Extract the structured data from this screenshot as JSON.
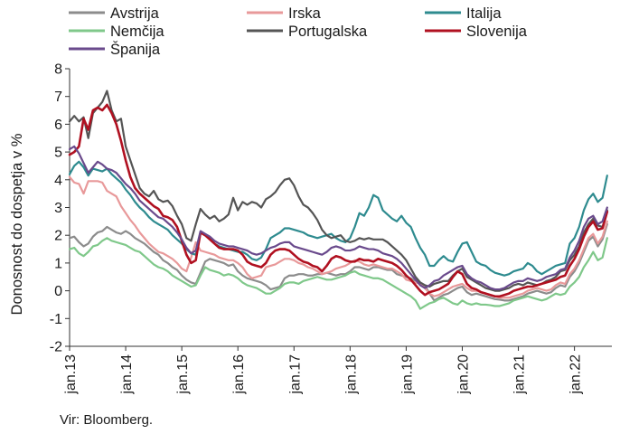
{
  "chart_data": {
    "type": "line",
    "title": "",
    "xlabel": "",
    "ylabel": "Donosnost do dospetja v %",
    "ylim": [
      -2,
      8
    ],
    "yticks": [
      -2,
      -1,
      0,
      1,
      2,
      3,
      4,
      5,
      6,
      7,
      8
    ],
    "grid": false,
    "legend_placement": "top",
    "x_tick_labels": [
      "jan.13",
      "jan.14",
      "jan.15",
      "jan.16",
      "jan.17",
      "jan.18",
      "jan.19",
      "jan.20",
      "jan.21",
      "jan.22"
    ],
    "x_range_months": [
      0,
      116
    ],
    "source": "Vir: Bloomberg.",
    "series": [
      {
        "name": "Avstrija",
        "color": "#8c8c8c",
        "values": [
          1.9,
          1.95,
          1.75,
          1.6,
          1.7,
          1.95,
          2.1,
          2.15,
          2.3,
          2.2,
          2.1,
          2.05,
          2.15,
          2.05,
          1.9,
          1.8,
          1.7,
          1.55,
          1.4,
          1.3,
          1.1,
          1.0,
          0.85,
          0.75,
          0.55,
          0.4,
          0.3,
          0.25,
          0.65,
          1.05,
          1.15,
          1.1,
          1.05,
          1.0,
          0.9,
          0.95,
          0.7,
          0.55,
          0.45,
          0.4,
          0.35,
          0.3,
          0.2,
          0.05,
          0.1,
          0.15,
          0.45,
          0.55,
          0.55,
          0.6,
          0.6,
          0.55,
          0.55,
          0.6,
          0.6,
          0.65,
          0.6,
          0.55,
          0.6,
          0.6,
          0.7,
          0.85,
          0.85,
          0.8,
          0.75,
          0.85,
          0.85,
          0.8,
          0.75,
          0.75,
          0.6,
          0.55,
          0.5,
          0.45,
          0.35,
          0.3,
          0.2,
          -0.1,
          -0.35,
          -0.25,
          -0.15,
          -0.1,
          0.0,
          0.1,
          0.15,
          -0.05,
          -0.15,
          -0.1,
          -0.15,
          -0.2,
          -0.25,
          -0.3,
          -0.32,
          -0.35,
          -0.35,
          -0.3,
          -0.25,
          -0.2,
          -0.1,
          -0.05,
          0.0,
          -0.05,
          -0.1,
          -0.05,
          0.1,
          0.2,
          0.15,
          0.5,
          0.7,
          1.0,
          1.4,
          1.8,
          1.95,
          1.6,
          1.85,
          2.4
        ]
      },
      {
        "name": "Irska",
        "color": "#e8999a",
        "values": [
          4.1,
          3.9,
          3.85,
          3.5,
          3.95,
          3.95,
          3.95,
          3.9,
          3.6,
          3.5,
          3.4,
          3.05,
          2.8,
          2.55,
          2.35,
          2.1,
          1.9,
          1.7,
          1.55,
          1.4,
          1.35,
          1.25,
          1.15,
          1.0,
          0.8,
          0.7,
          1.2,
          1.75,
          1.45,
          1.4,
          1.35,
          1.3,
          1.2,
          1.15,
          1.1,
          1.1,
          1.0,
          0.85,
          0.6,
          0.45,
          0.5,
          0.55,
          0.85,
          0.9,
          0.95,
          1.05,
          1.15,
          1.15,
          1.1,
          1.0,
          0.95,
          0.85,
          0.8,
          0.7,
          0.6,
          0.65,
          0.7,
          0.8,
          0.85,
          0.9,
          1.0,
          1.1,
          1.05,
          0.95,
          0.9,
          0.95,
          0.9,
          0.85,
          0.8,
          0.8,
          0.7,
          0.6,
          0.4,
          0.35,
          0.3,
          0.25,
          0.1,
          -0.1,
          -0.2,
          -0.15,
          -0.05,
          0.05,
          0.15,
          0.2,
          0.25,
          0.1,
          0.0,
          0.0,
          -0.05,
          -0.1,
          -0.15,
          -0.2,
          -0.25,
          -0.25,
          -0.25,
          -0.2,
          -0.15,
          -0.1,
          0.0,
          0.05,
          0.1,
          0.05,
          0.0,
          0.05,
          0.2,
          0.3,
          0.25,
          0.6,
          0.8,
          1.1,
          1.5,
          1.9,
          2.05,
          1.7,
          1.95,
          2.5
        ]
      },
      {
        "name": "Italija",
        "color": "#2e8b8f",
        "values": [
          4.2,
          4.5,
          4.65,
          4.45,
          4.15,
          4.4,
          4.35,
          4.3,
          4.4,
          4.2,
          4.05,
          3.9,
          3.65,
          3.45,
          3.2,
          3.0,
          2.85,
          2.65,
          2.5,
          2.4,
          2.3,
          2.2,
          2.0,
          1.85,
          1.7,
          1.5,
          1.35,
          1.3,
          2.1,
          2.0,
          1.9,
          1.7,
          1.6,
          1.55,
          1.5,
          1.45,
          1.4,
          1.4,
          1.3,
          1.15,
          1.1,
          1.2,
          1.5,
          1.9,
          2.0,
          2.1,
          2.25,
          2.25,
          2.2,
          2.15,
          2.1,
          2.0,
          1.95,
          1.9,
          1.95,
          2.0,
          2.05,
          1.9,
          1.8,
          1.75,
          1.9,
          2.3,
          2.8,
          2.7,
          3.0,
          3.45,
          3.35,
          2.9,
          2.75,
          2.6,
          2.5,
          2.7,
          2.45,
          2.3,
          1.9,
          1.55,
          1.3,
          0.9,
          0.9,
          1.1,
          1.25,
          1.1,
          1.05,
          1.4,
          1.7,
          1.75,
          1.4,
          1.05,
          0.95,
          0.9,
          0.75,
          0.65,
          0.6,
          0.55,
          0.6,
          0.7,
          0.75,
          0.8,
          1.0,
          0.9,
          0.7,
          0.6,
          0.7,
          0.8,
          0.9,
          0.95,
          1.0,
          1.7,
          1.9,
          2.3,
          2.9,
          3.3,
          3.5,
          3.2,
          3.35,
          4.15
        ]
      },
      {
        "name": "Nemčija",
        "color": "#7fc88a",
        "values": [
          1.5,
          1.55,
          1.35,
          1.25,
          1.4,
          1.6,
          1.65,
          1.8,
          1.9,
          1.8,
          1.75,
          1.7,
          1.65,
          1.55,
          1.45,
          1.4,
          1.25,
          1.1,
          0.95,
          0.85,
          0.8,
          0.7,
          0.55,
          0.45,
          0.35,
          0.25,
          0.15,
          0.2,
          0.55,
          0.85,
          0.75,
          0.7,
          0.65,
          0.55,
          0.6,
          0.55,
          0.45,
          0.3,
          0.2,
          0.15,
          0.1,
          0.0,
          -0.1,
          -0.1,
          0.0,
          0.1,
          0.25,
          0.3,
          0.3,
          0.25,
          0.35,
          0.4,
          0.45,
          0.5,
          0.45,
          0.4,
          0.4,
          0.45,
          0.5,
          0.55,
          0.65,
          0.7,
          0.6,
          0.55,
          0.5,
          0.45,
          0.45,
          0.4,
          0.3,
          0.2,
          0.1,
          0.0,
          -0.1,
          -0.2,
          -0.35,
          -0.65,
          -0.55,
          -0.45,
          -0.4,
          -0.3,
          -0.25,
          -0.35,
          -0.45,
          -0.5,
          -0.35,
          -0.45,
          -0.5,
          -0.45,
          -0.5,
          -0.5,
          -0.52,
          -0.55,
          -0.55,
          -0.5,
          -0.45,
          -0.35,
          -0.3,
          -0.25,
          -0.2,
          -0.25,
          -0.3,
          -0.35,
          -0.3,
          -0.2,
          -0.1,
          -0.15,
          -0.1,
          0.15,
          0.3,
          0.5,
          0.85,
          1.1,
          1.4,
          1.1,
          1.2,
          1.9
        ]
      },
      {
        "name": "Portugalska",
        "color": "#555555",
        "values": [
          6.1,
          6.3,
          6.1,
          6.25,
          5.5,
          6.4,
          6.6,
          6.8,
          7.2,
          6.5,
          6.1,
          6.2,
          5.2,
          4.7,
          4.2,
          3.7,
          3.5,
          3.4,
          3.6,
          3.3,
          3.2,
          3.25,
          3.05,
          2.7,
          2.4,
          1.9,
          1.8,
          2.4,
          2.95,
          2.75,
          2.6,
          2.7,
          2.5,
          2.6,
          2.75,
          3.35,
          2.9,
          3.2,
          3.1,
          3.2,
          3.15,
          3.0,
          3.3,
          3.4,
          3.55,
          3.8,
          4.0,
          4.05,
          3.8,
          3.4,
          3.1,
          3.0,
          2.8,
          2.55,
          2.2,
          2.0,
          1.9,
          1.95,
          2.0,
          1.8,
          1.75,
          1.8,
          1.9,
          1.85,
          1.9,
          1.85,
          1.85,
          1.85,
          1.75,
          1.6,
          1.45,
          1.3,
          1.1,
          0.8,
          0.5,
          0.3,
          0.2,
          0.15,
          0.25,
          0.3,
          0.35,
          0.35,
          0.55,
          0.7,
          0.8,
          0.5,
          0.4,
          0.3,
          0.2,
          0.1,
          0.05,
          0.0,
          0.0,
          0.05,
          0.1,
          0.2,
          0.25,
          0.2,
          0.3,
          0.25,
          0.2,
          0.25,
          0.35,
          0.4,
          0.5,
          0.7,
          0.75,
          1.1,
          1.3,
          1.6,
          2.1,
          2.4,
          2.6,
          2.35,
          2.3,
          2.9
        ]
      },
      {
        "name": "Slovenija",
        "color": "#b01020",
        "values": [
          4.9,
          5.0,
          5.2,
          6.2,
          5.8,
          6.5,
          6.6,
          6.5,
          6.7,
          6.4,
          6.0,
          5.4,
          4.7,
          4.1,
          3.7,
          3.5,
          3.35,
          3.2,
          3.05,
          2.95,
          2.7,
          2.65,
          2.55,
          2.3,
          1.8,
          1.3,
          1.0,
          1.1,
          2.1,
          2.0,
          1.85,
          1.7,
          1.55,
          1.5,
          1.5,
          1.5,
          1.45,
          1.3,
          1.05,
          0.95,
          0.9,
          0.85,
          1.0,
          1.3,
          1.45,
          1.5,
          1.5,
          1.45,
          1.3,
          1.15,
          1.05,
          1.0,
          0.9,
          0.85,
          0.7,
          0.9,
          1.15,
          1.25,
          1.2,
          1.1,
          1.05,
          1.05,
          1.15,
          1.1,
          1.1,
          1.05,
          1.15,
          1.1,
          1.05,
          1.0,
          0.9,
          0.75,
          0.55,
          0.4,
          0.2,
          0.0,
          -0.15,
          -0.05,
          0.0,
          0.05,
          0.15,
          0.25,
          0.5,
          0.7,
          0.6,
          0.25,
          0.1,
          0.05,
          -0.05,
          -0.1,
          -0.15,
          -0.2,
          -0.2,
          -0.15,
          -0.1,
          0.0,
          0.05,
          0.1,
          0.15,
          0.15,
          0.2,
          0.25,
          0.3,
          0.35,
          0.4,
          0.5,
          0.55,
          0.9,
          1.15,
          1.5,
          1.95,
          2.3,
          2.5,
          2.2,
          2.25,
          2.85
        ]
      },
      {
        "name": "Španija",
        "color": "#6a4a8c",
        "values": [
          5.1,
          5.2,
          4.95,
          4.6,
          4.25,
          4.45,
          4.65,
          4.55,
          4.4,
          4.35,
          4.25,
          4.05,
          3.85,
          3.7,
          3.5,
          3.25,
          3.1,
          2.95,
          2.8,
          2.65,
          2.6,
          2.45,
          2.3,
          2.1,
          1.85,
          1.55,
          1.35,
          1.45,
          2.15,
          2.05,
          1.95,
          1.8,
          1.7,
          1.65,
          1.6,
          1.6,
          1.55,
          1.5,
          1.45,
          1.35,
          1.3,
          1.35,
          1.45,
          1.55,
          1.6,
          1.7,
          1.75,
          1.75,
          1.6,
          1.55,
          1.5,
          1.45,
          1.4,
          1.35,
          1.3,
          1.4,
          1.55,
          1.6,
          1.55,
          1.45,
          1.45,
          1.5,
          1.6,
          1.55,
          1.5,
          1.5,
          1.45,
          1.35,
          1.3,
          1.25,
          1.15,
          1.0,
          0.8,
          0.6,
          0.4,
          0.2,
          0.1,
          0.2,
          0.35,
          0.4,
          0.55,
          0.65,
          0.75,
          0.85,
          0.9,
          0.6,
          0.45,
          0.35,
          0.3,
          0.2,
          0.1,
          0.05,
          0.05,
          0.1,
          0.2,
          0.3,
          0.35,
          0.35,
          0.45,
          0.4,
          0.35,
          0.4,
          0.5,
          0.55,
          0.6,
          0.75,
          0.8,
          1.2,
          1.45,
          1.8,
          2.3,
          2.6,
          2.7,
          2.4,
          2.5,
          3.0
        ]
      }
    ]
  }
}
